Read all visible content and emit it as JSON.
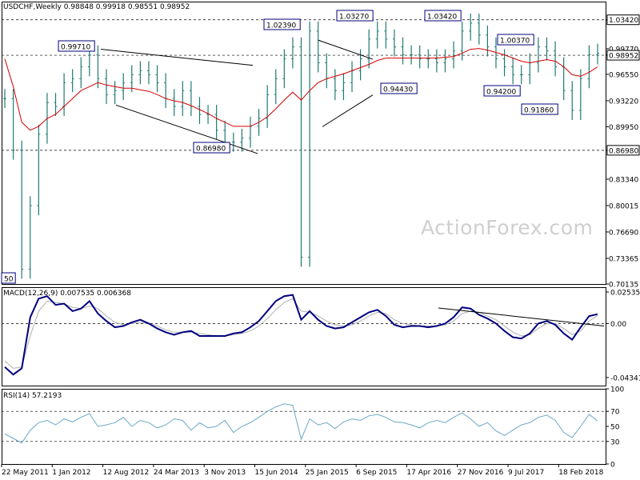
{
  "header": {
    "symbol": "USDCHF",
    "timeframe": "Weekly",
    "ohlc": [
      "0.98848",
      "0.99918",
      "0.98551",
      "0.98952"
    ]
  },
  "watermark": "ActionForex.com",
  "colors": {
    "bar": "#1f7a76",
    "ma": "#d40000",
    "macd": "#00007f",
    "signal": "#b0b0b0",
    "rsi": "#6aa8c6",
    "label_border": "#00007f",
    "label_fill": "#ffffff",
    "last_price_fill": "#ffffff",
    "grid": "#000000"
  },
  "chart_data": [
    {
      "type": "line",
      "title": "USDCHF,Weekly",
      "ylim": [
        0.70135,
        1.0571
      ],
      "x_tick_labels": [
        "22 May 2011",
        "1 Jan 2012",
        "12 Aug 2012",
        "24 Mar 2013",
        "3 Nov 2013",
        "15 Jun 2014",
        "25 Jan 2015",
        "6 Sep 2015",
        "17 Apr 2016",
        "27 Nov 2016",
        "9 Jul 2017",
        "18 Feb 2018"
      ],
      "y_tick_labels": [
        "1.03420",
        "0.99770",
        "0.98952",
        "0.96550",
        "0.93220",
        "0.89950",
        "0.86980",
        "0.83340",
        "0.80015",
        "0.76690",
        "0.73365",
        "0.70135"
      ],
      "last_price": "0.98952",
      "dashed_levels": [
        1.0342,
        0.9895,
        0.8698
      ],
      "annotations": [
        {
          "label": "0.99710",
          "value": 0.9971
        },
        {
          "label": "0.86980",
          "value": 0.8698
        },
        {
          "label": "1.02390",
          "value": 1.0239
        },
        {
          "label": "1.03270",
          "value": 1.0327
        },
        {
          "label": "1.03420",
          "value": 1.0342
        },
        {
          "label": "0.94430",
          "value": 0.9443
        },
        {
          "label": "1.00370",
          "value": 1.0037
        },
        {
          "label": "0.94200",
          "value": 0.942
        },
        {
          "label": "0.91860",
          "value": 0.9186
        },
        {
          "label": "50",
          "value": 0.7095
        }
      ],
      "series": [
        {
          "name": "price",
          "values": [
            0.935,
            0.87,
            0.72,
            0.8,
            0.89,
            0.93,
            0.925,
            0.955,
            0.96,
            0.975,
            0.99,
            0.96,
            0.94,
            0.945,
            0.955,
            0.965,
            0.97,
            0.965,
            0.955,
            0.935,
            0.925,
            0.945,
            0.925,
            0.915,
            0.915,
            0.895,
            0.88,
            0.88,
            0.885,
            0.9,
            0.91,
            0.94,
            0.96,
            0.985,
            1.0,
            0.735,
            1.02,
            0.98,
            0.96,
            0.945,
            0.955,
            0.97,
            0.985,
            1.01,
            1.02,
            1.01,
            1.0,
            0.99,
            0.99,
            0.985,
            0.985,
            0.98,
            0.985,
            0.995,
            1.02,
            1.03,
            1.015,
            1.0,
            0.985,
            0.975,
            0.965,
            0.965,
            0.98,
            1.0,
            0.995,
            0.975,
            0.945,
            0.92,
            0.96,
            0.99,
            0.992
          ]
        },
        {
          "name": "MA",
          "values": [
            0.985,
            0.95,
            0.905,
            0.895,
            0.9,
            0.91,
            0.915,
            0.925,
            0.935,
            0.945,
            0.95,
            0.955,
            0.952,
            0.95,
            0.948,
            0.948,
            0.946,
            0.944,
            0.94,
            0.935,
            0.932,
            0.93,
            0.926,
            0.921,
            0.916,
            0.91,
            0.905,
            0.9,
            0.9,
            0.9,
            0.905,
            0.912,
            0.922,
            0.933,
            0.943,
            0.933,
            0.945,
            0.955,
            0.96,
            0.963,
            0.966,
            0.97,
            0.974,
            0.978,
            0.983,
            0.986,
            0.986,
            0.986,
            0.986,
            0.986,
            0.986,
            0.986,
            0.987,
            0.988,
            0.992,
            0.997,
            0.998,
            0.996,
            0.993,
            0.99,
            0.986,
            0.982,
            0.98,
            0.982,
            0.984,
            0.982,
            0.975,
            0.965,
            0.963,
            0.968,
            0.975
          ]
        }
      ]
    },
    {
      "type": "line",
      "title": "MACD(12,26,9) 0.007535 0.006368",
      "ylim": [
        -0.0499,
        0.0292
      ],
      "y_tick_labels": [
        "0.025353",
        "0.00",
        "-0.043419"
      ],
      "series": [
        {
          "name": "MACD",
          "values": [
            -0.035,
            -0.041,
            -0.036,
            0.005,
            0.02,
            0.022,
            0.015,
            0.016,
            0.01,
            0.012,
            0.018,
            0.008,
            0.002,
            -0.003,
            -0.002,
            0.001,
            0.003,
            0.0,
            -0.004,
            -0.007,
            -0.009,
            -0.007,
            -0.006,
            -0.01,
            -0.01,
            -0.01,
            -0.01,
            -0.008,
            -0.007,
            -0.003,
            0.002,
            0.01,
            0.018,
            0.022,
            0.023,
            0.003,
            0.01,
            0.003,
            -0.002,
            -0.004,
            -0.003,
            0.001,
            0.005,
            0.009,
            0.011,
            0.006,
            -0.001,
            -0.003,
            -0.002,
            -0.002,
            -0.003,
            -0.002,
            0.0,
            0.005,
            0.013,
            0.012,
            0.007,
            0.004,
            0.0,
            -0.006,
            -0.011,
            -0.012,
            -0.008,
            0.0,
            0.002,
            -0.001,
            -0.008,
            -0.013,
            -0.003,
            0.006,
            0.0075
          ]
        },
        {
          "name": "Signal",
          "values": [
            -0.03,
            -0.036,
            -0.035,
            -0.01,
            0.01,
            0.018,
            0.017,
            0.016,
            0.013,
            0.012,
            0.014,
            0.012,
            0.006,
            0.001,
            -0.001,
            0.0,
            0.001,
            0.0,
            -0.002,
            -0.005,
            -0.007,
            -0.007,
            -0.007,
            -0.008,
            -0.009,
            -0.01,
            -0.01,
            -0.009,
            -0.008,
            -0.006,
            -0.002,
            0.004,
            0.011,
            0.017,
            0.02,
            0.01,
            0.009,
            0.006,
            0.002,
            -0.001,
            -0.002,
            -0.001,
            0.002,
            0.006,
            0.009,
            0.008,
            0.003,
            0.0,
            -0.001,
            -0.002,
            -0.002,
            -0.002,
            -0.001,
            0.002,
            0.008,
            0.01,
            0.009,
            0.006,
            0.003,
            -0.002,
            -0.007,
            -0.01,
            -0.009,
            -0.004,
            0.0,
            0.0,
            -0.004,
            -0.009,
            -0.006,
            0.002,
            0.0064
          ]
        }
      ]
    },
    {
      "type": "line",
      "title": "RSI(14) 57.2193",
      "ylim": [
        0,
        100
      ],
      "y_tick_labels": [
        "100",
        "70",
        "50",
        "30",
        "0"
      ],
      "series": [
        {
          "name": "RSI",
          "values": [
            40,
            34,
            28,
            45,
            55,
            58,
            52,
            60,
            56,
            62,
            67,
            50,
            52,
            55,
            62,
            50,
            58,
            55,
            48,
            52,
            60,
            58,
            45,
            55,
            48,
            50,
            58,
            42,
            50,
            55,
            62,
            70,
            76,
            80,
            78,
            33,
            60,
            52,
            55,
            47,
            56,
            60,
            58,
            64,
            66,
            62,
            56,
            55,
            52,
            48,
            55,
            58,
            55,
            62,
            68,
            60,
            50,
            55,
            44,
            38,
            45,
            52,
            55,
            62,
            65,
            58,
            42,
            35,
            50,
            66,
            57.2
          ]
        }
      ]
    }
  ]
}
